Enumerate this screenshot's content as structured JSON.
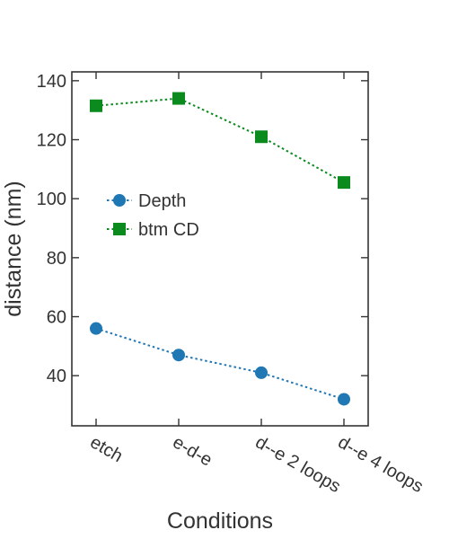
{
  "chart_data": {
    "type": "line",
    "xlabel": "Conditions",
    "ylabel": "distance (nm)",
    "categories": [
      "etch",
      "e-d-e",
      "d--e 2 loops",
      "d--e 4 loops"
    ],
    "ylim": [
      23,
      143
    ],
    "yticks": [
      40,
      60,
      80,
      100,
      120,
      140
    ],
    "grid": false,
    "legend_position": "center-left",
    "series": [
      {
        "name": "Depth",
        "values": [
          56,
          47,
          41,
          32
        ],
        "color": "#1f77b4",
        "marker": "circle",
        "line": "dotted"
      },
      {
        "name": "btm CD",
        "values": [
          131.5,
          134,
          121,
          105.5
        ],
        "color": "#0b8a1e",
        "marker": "square",
        "line": "dotted"
      }
    ]
  }
}
